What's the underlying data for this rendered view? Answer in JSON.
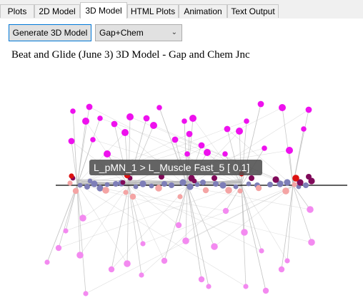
{
  "tabs": [
    {
      "label": "Plots"
    },
    {
      "label": "2D Model"
    },
    {
      "label": "3D Model"
    },
    {
      "label": "HTML Plots"
    },
    {
      "label": "Animation"
    },
    {
      "label": "Text Output"
    }
  ],
  "toolbar": {
    "generate_label": "Generate 3D Model",
    "connection_select": "Gap+Chem"
  },
  "model": {
    "title": "Beat and Glide (June 3) 3D Model - Gap and Chem Jnc",
    "tooltip": "L_pMN_1 > L_Muscle Fast_5 [ 0.1]"
  },
  "colors": {
    "magenta": "#ee11ee",
    "pink": "#f38af0",
    "salmon": "#f4a4a4",
    "slate": "#7e7eb8",
    "purple": "#800a5a",
    "red": "#dd1111",
    "axis": "#000000",
    "edge": "#b8b8b8"
  }
}
